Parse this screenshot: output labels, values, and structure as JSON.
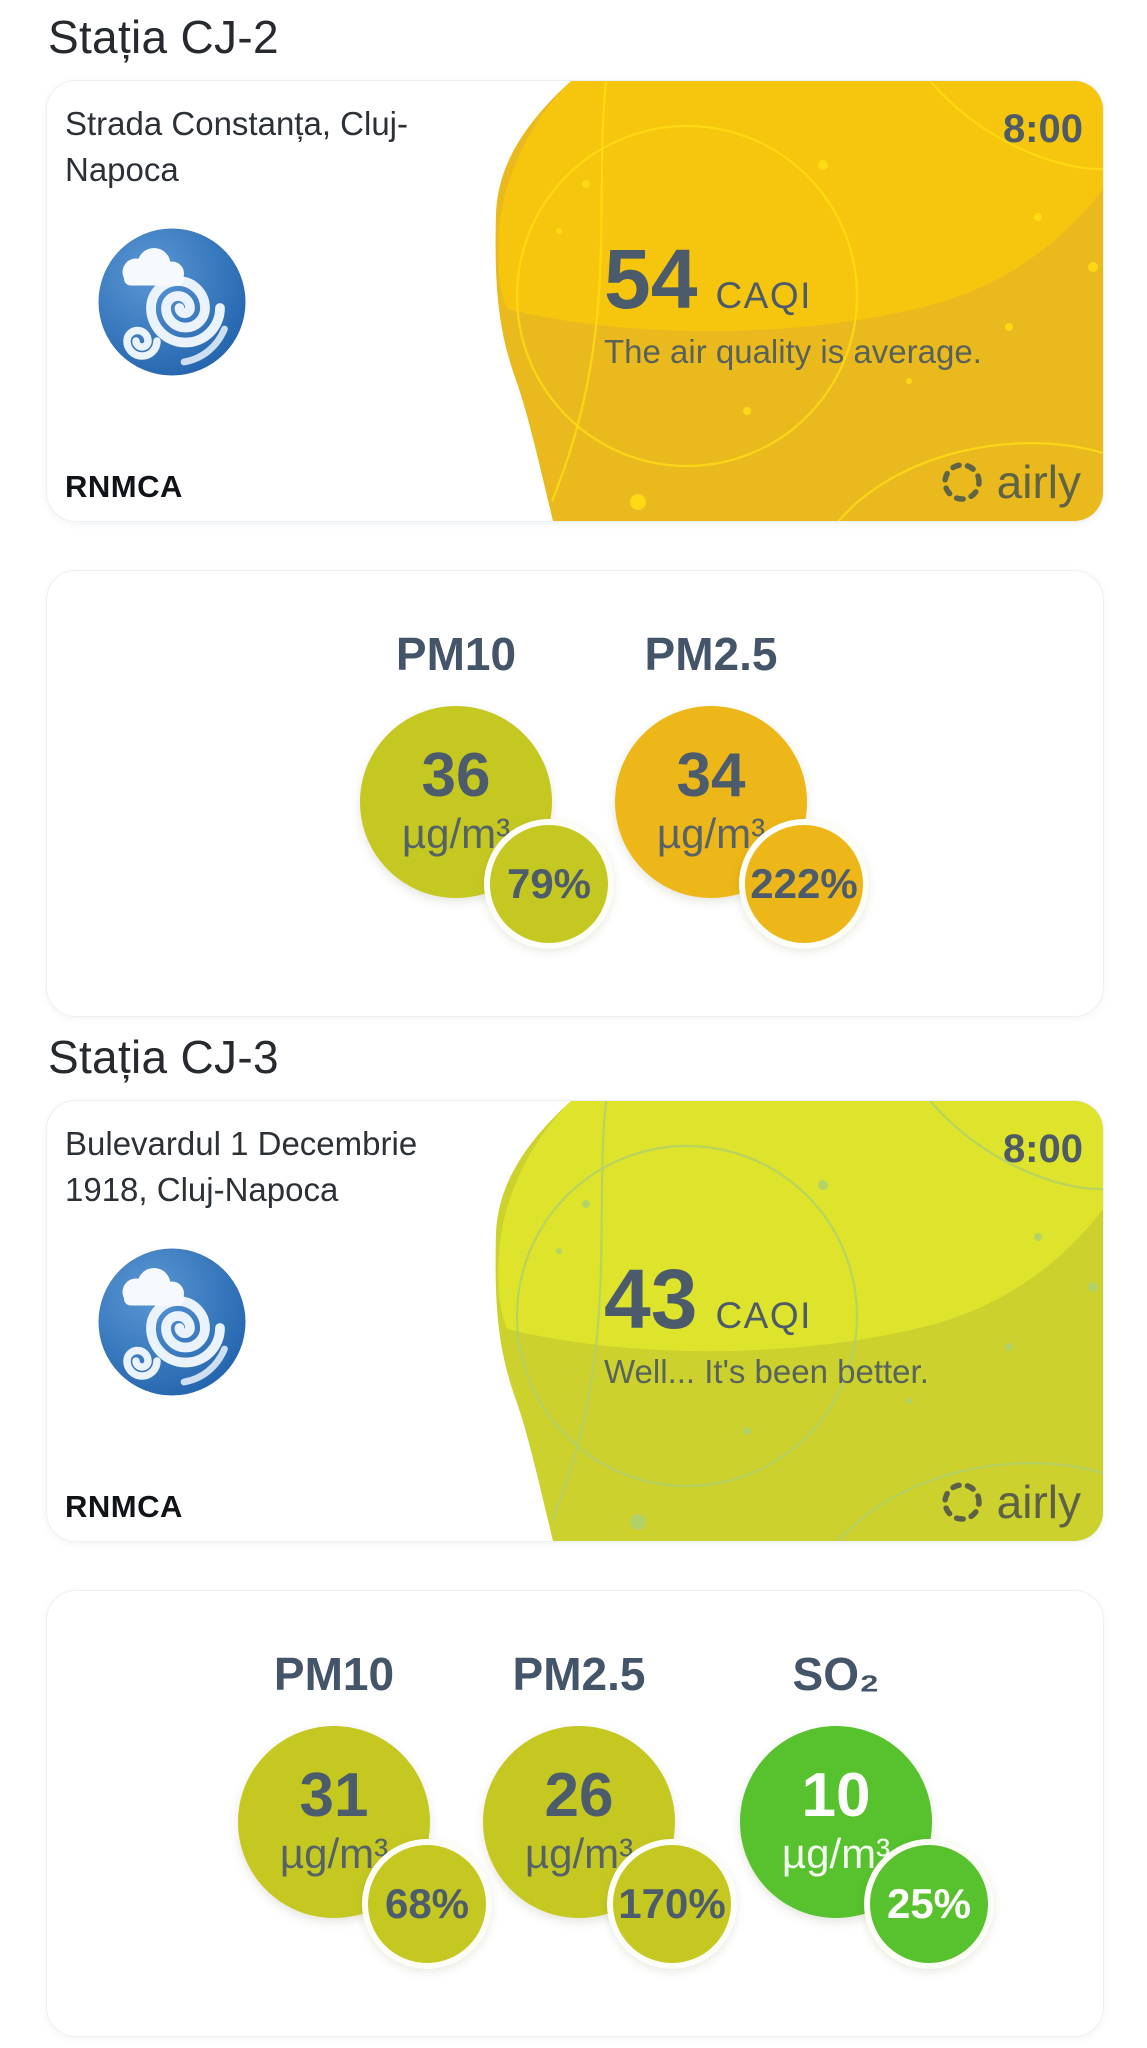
{
  "app": {
    "background_color": "#ffffff",
    "text_dark_color": "#26292e",
    "text_slate_color": "#4c5b6c"
  },
  "stations": [
    {
      "title": "Stația CJ-2",
      "card": {
        "address": "Strada Constanța, Cluj-Napoca",
        "time": "8:00",
        "caqi_value": "54",
        "caqi_unit": "CAQI",
        "description": "The air quality is average.",
        "source": "RNMCA",
        "brand": "airly",
        "weather_icon": "wind-cloud-icon",
        "blob_color": "#eab91e",
        "blob_light_color": "#f6c60e",
        "deco_color": "#ffdd14",
        "brand_color": "#5f6444"
      },
      "pollutants": [
        {
          "name": "PM10",
          "value": "36",
          "unit": "µg/m³",
          "percent": "79%",
          "color": "#c6c822",
          "text_color": "#4d5c6d"
        },
        {
          "name": "PM2.5",
          "value": "34",
          "unit": "µg/m³",
          "percent": "222%",
          "color": "#edb719",
          "text_color": "#4d5c6d"
        }
      ]
    },
    {
      "title": "Stația CJ-3",
      "card": {
        "address": "Bulevardul 1 Decembrie 1918, Cluj-Napoca",
        "time": "8:00",
        "caqi_value": "43",
        "caqi_unit": "CAQI",
        "description": "Well... It's been better.",
        "source": "RNMCA",
        "brand": "airly",
        "weather_icon": "wind-cloud-icon",
        "blob_color": "#cdd12e",
        "blob_light_color": "#dee32b",
        "deco_color": "#aed06e",
        "brand_color": "#5c6147"
      },
      "pollutants": [
        {
          "name": "PM10",
          "value": "31",
          "unit": "µg/m³",
          "percent": "68%",
          "color": "#c6c822",
          "text_color": "#4d5c6d"
        },
        {
          "name": "PM2.5",
          "value": "26",
          "unit": "µg/m³",
          "percent": "170%",
          "color": "#c6c822",
          "text_color": "#4d5c6d"
        },
        {
          "name": "SO₂",
          "value": "10",
          "unit": "µg/m³",
          "percent": "25%",
          "color": "#57c22d",
          "text_color": "#ffffff"
        }
      ]
    }
  ]
}
